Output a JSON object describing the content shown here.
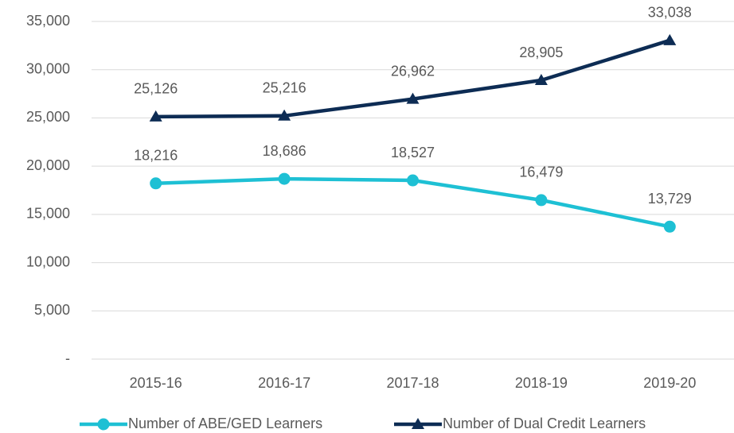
{
  "chart_data": {
    "type": "line",
    "categories": [
      "2015-16",
      "2016-17",
      "2017-18",
      "2018-19",
      "2019-20"
    ],
    "series": [
      {
        "name": "Number of ABE/GED Learners",
        "color": "#1ec0d4",
        "marker": "circle",
        "values": [
          18216,
          18686,
          18527,
          16479,
          13729
        ],
        "value_labels": [
          "18,216",
          "18,686",
          "18,527",
          "16,479",
          "13,729"
        ]
      },
      {
        "name": "Number of Dual Credit Learners",
        "color": "#0d2c54",
        "marker": "triangle",
        "values": [
          25126,
          25216,
          26962,
          28905,
          33038
        ],
        "value_labels": [
          "25,126",
          "25,216",
          "26,962",
          "28,905",
          "33,038"
        ]
      }
    ],
    "ylim": [
      0,
      35000
    ],
    "yticks": [
      {
        "value": 0,
        "label": "-"
      },
      {
        "value": 5000,
        "label": "5,000"
      },
      {
        "value": 10000,
        "label": "10,000"
      },
      {
        "value": 15000,
        "label": "15,000"
      },
      {
        "value": 20000,
        "label": "20,000"
      },
      {
        "value": 25000,
        "label": "25,000"
      },
      {
        "value": 30000,
        "label": "30,000"
      },
      {
        "value": 35000,
        "label": "35,000"
      }
    ],
    "grid": true,
    "legend": "bottom"
  }
}
